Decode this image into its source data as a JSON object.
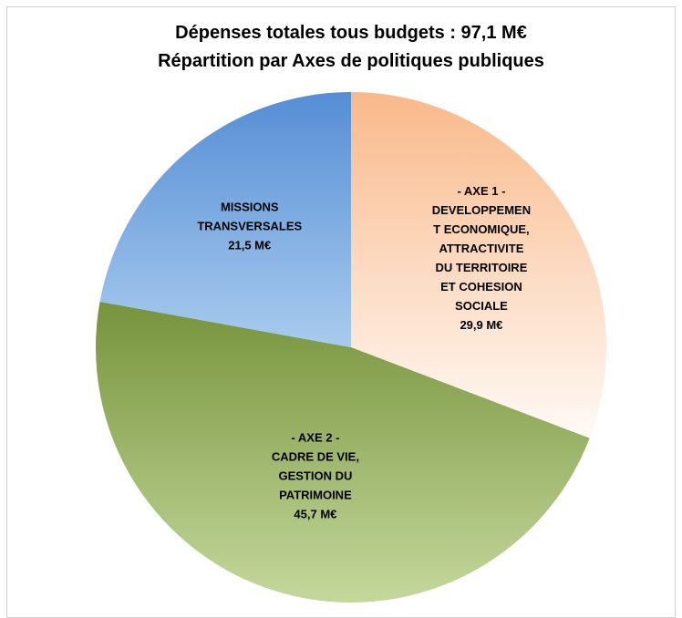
{
  "chart_data": {
    "type": "pie",
    "title": "Dépenses totales tous budgets : 97,1 M€",
    "subtitle": "Répartition par Axes de politiques publiques",
    "categories": [
      "- AXE 1 -\nDEVELOPPEMEN\nT ECONOMIQUE,\nATTRACTIVITE\nDU TERRITOIRE\nET COHESION\nSOCIALE",
      "- AXE 2 -\nCADRE DE VIE,\nGESTION DU\nPATRIMOINE",
      "MISSIONS\nTRANSVERSALES"
    ],
    "values": [
      29.9,
      45.7,
      21.5
    ],
    "value_labels": [
      "29,9 M€",
      "45,7 M€",
      "21,5 M€"
    ],
    "colors": [
      [
        "#f9b98a",
        "#fffaf6"
      ],
      [
        "#77933c",
        "#c4d89c"
      ],
      [
        "#558ed5",
        "#a9cbee"
      ]
    ]
  }
}
